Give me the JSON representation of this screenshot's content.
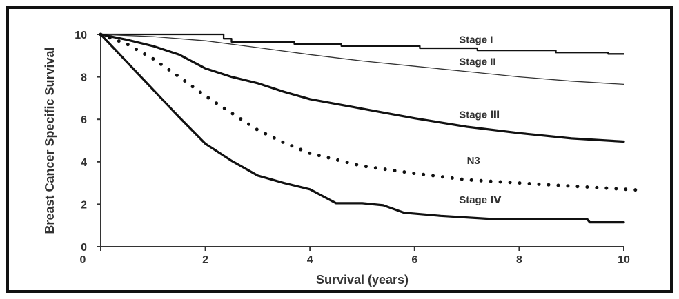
{
  "chart_data": {
    "type": "line",
    "title": "",
    "xlabel": "Survival (years)",
    "ylabel": "Breast Cancer Specific Survival",
    "xlim": [
      0,
      10
    ],
    "ylim": [
      0,
      10
    ],
    "x_ticks": [
      0,
      2,
      4,
      6,
      8,
      10
    ],
    "y_ticks": [
      0,
      2,
      4,
      6,
      8,
      10
    ],
    "x_tick_labels": [
      "0",
      "2",
      "4",
      "6",
      "8",
      "10"
    ],
    "y_tick_labels": [
      "0",
      "2",
      "4",
      "6",
      "8",
      "10"
    ],
    "grid": false,
    "series": [
      {
        "name": "Stage I",
        "style": "step",
        "stroke": "#111111",
        "points": [
          [
            0,
            10
          ],
          [
            2.35,
            10
          ],
          [
            2.35,
            9.8
          ],
          [
            2.5,
            9.8
          ],
          [
            2.5,
            9.65
          ],
          [
            3.7,
            9.65
          ],
          [
            3.7,
            9.55
          ],
          [
            4.6,
            9.55
          ],
          [
            4.6,
            9.45
          ],
          [
            6.1,
            9.45
          ],
          [
            6.1,
            9.35
          ],
          [
            7.2,
            9.35
          ],
          [
            7.2,
            9.25
          ],
          [
            8.7,
            9.25
          ],
          [
            8.7,
            9.15
          ],
          [
            9.7,
            9.15
          ],
          [
            9.7,
            9.08
          ],
          [
            10,
            9.08
          ]
        ]
      },
      {
        "name": "Stage II",
        "style": "thin",
        "stroke": "#333333",
        "points": [
          [
            0,
            10
          ],
          [
            1,
            9.9
          ],
          [
            2,
            9.7
          ],
          [
            3,
            9.38
          ],
          [
            4,
            9.05
          ],
          [
            5,
            8.75
          ],
          [
            6,
            8.5
          ],
          [
            7,
            8.25
          ],
          [
            8,
            8.0
          ],
          [
            9,
            7.8
          ],
          [
            10,
            7.65
          ]
        ]
      },
      {
        "name": "Stage Ⅲ",
        "style": "thick",
        "stroke": "#111111",
        "points": [
          [
            0,
            10
          ],
          [
            0.5,
            9.75
          ],
          [
            1,
            9.45
          ],
          [
            1.5,
            9.05
          ],
          [
            2,
            8.4
          ],
          [
            2.5,
            8.0
          ],
          [
            3,
            7.7
          ],
          [
            3.5,
            7.3
          ],
          [
            4,
            6.95
          ],
          [
            5,
            6.5
          ],
          [
            6,
            6.05
          ],
          [
            7,
            5.65
          ],
          [
            8,
            5.35
          ],
          [
            9,
            5.1
          ],
          [
            10,
            4.95
          ]
        ]
      },
      {
        "name": "N3",
        "style": "dotted",
        "stroke": "#111111",
        "points": [
          [
            0,
            10
          ],
          [
            0.5,
            9.55
          ],
          [
            1,
            8.85
          ],
          [
            1.5,
            8.0
          ],
          [
            2,
            7.1
          ],
          [
            2.5,
            6.3
          ],
          [
            3,
            5.5
          ],
          [
            3.5,
            4.9
          ],
          [
            4,
            4.4
          ],
          [
            5,
            3.8
          ],
          [
            6,
            3.45
          ],
          [
            7,
            3.15
          ],
          [
            8,
            3.0
          ],
          [
            9,
            2.85
          ],
          [
            10.4,
            2.65
          ]
        ]
      },
      {
        "name": "Stage Ⅳ",
        "style": "thick",
        "stroke": "#111111",
        "points": [
          [
            0,
            10
          ],
          [
            0.5,
            8.7
          ],
          [
            1,
            7.4
          ],
          [
            1.5,
            6.1
          ],
          [
            2,
            4.85
          ],
          [
            2.5,
            4.05
          ],
          [
            3,
            3.35
          ],
          [
            3.5,
            3.0
          ],
          [
            4,
            2.7
          ],
          [
            4.5,
            2.05
          ],
          [
            5,
            2.05
          ],
          [
            5.4,
            1.95
          ],
          [
            5.8,
            1.6
          ],
          [
            6.5,
            1.45
          ],
          [
            7.5,
            1.3
          ],
          [
            9.3,
            1.3
          ],
          [
            9.35,
            1.15
          ],
          [
            10,
            1.15
          ]
        ]
      }
    ],
    "series_labels": [
      {
        "text": "Stage I",
        "x": 6.85,
        "y": 9.6
      },
      {
        "text": "Stage II",
        "x": 6.85,
        "y": 8.55
      },
      {
        "text": "Stage Ⅲ",
        "x": 6.85,
        "y": 6.05
      },
      {
        "text": "N3",
        "x": 7.0,
        "y": 3.9
      },
      {
        "text": "Stage Ⅳ",
        "x": 6.85,
        "y": 2.05
      }
    ]
  }
}
